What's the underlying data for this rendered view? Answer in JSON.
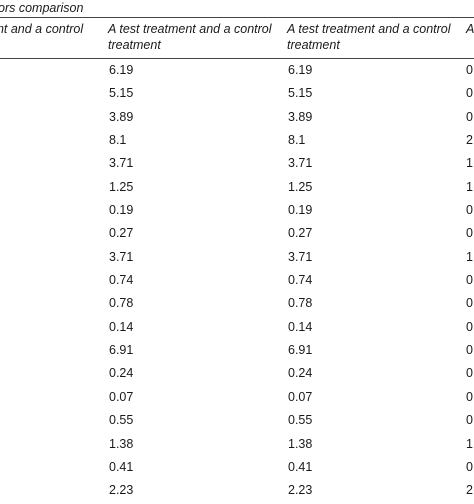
{
  "caption": "ors comparison",
  "headers": [
    "ent and a control",
    "A test treatment and a control treatment",
    "A test treatment and a control treatment",
    "A"
  ],
  "rows": [
    {
      "a": "6.19",
      "b": "6.19",
      "c": "0"
    },
    {
      "a": "5.15",
      "b": "5.15",
      "c": "0"
    },
    {
      "a": "3.89",
      "b": "3.89",
      "c": "0"
    },
    {
      "a": "8.1",
      "b": "8.1",
      "c": "2"
    },
    {
      "a": "3.71",
      "b": "3.71",
      "c": "1"
    },
    {
      "a": "1.25",
      "b": "1.25",
      "c": "1"
    },
    {
      "a": "0.19",
      "b": "0.19",
      "c": "0"
    },
    {
      "a": "0.27",
      "b": "0.27",
      "c": "0"
    },
    {
      "a": "3.71",
      "b": "3.71",
      "c": "1"
    },
    {
      "a": "0.74",
      "b": "0.74",
      "c": "0"
    },
    {
      "a": "0.78",
      "b": "0.78",
      "c": "0"
    },
    {
      "a": "0.14",
      "b": "0.14",
      "c": "0"
    },
    {
      "a": "6.91",
      "b": "6.91",
      "c": "0"
    },
    {
      "a": "0.24",
      "b": "0.24",
      "c": "0"
    },
    {
      "a": "0.07",
      "b": "0.07",
      "c": "0"
    },
    {
      "a": "0.55",
      "b": "0.55",
      "c": "0"
    },
    {
      "a": "1.38",
      "b": "1.38",
      "c": "1"
    },
    {
      "a": "0.41",
      "b": "0.41",
      "c": "0"
    },
    {
      "a": "2.23",
      "b": "2.23",
      "c": "2"
    }
  ]
}
